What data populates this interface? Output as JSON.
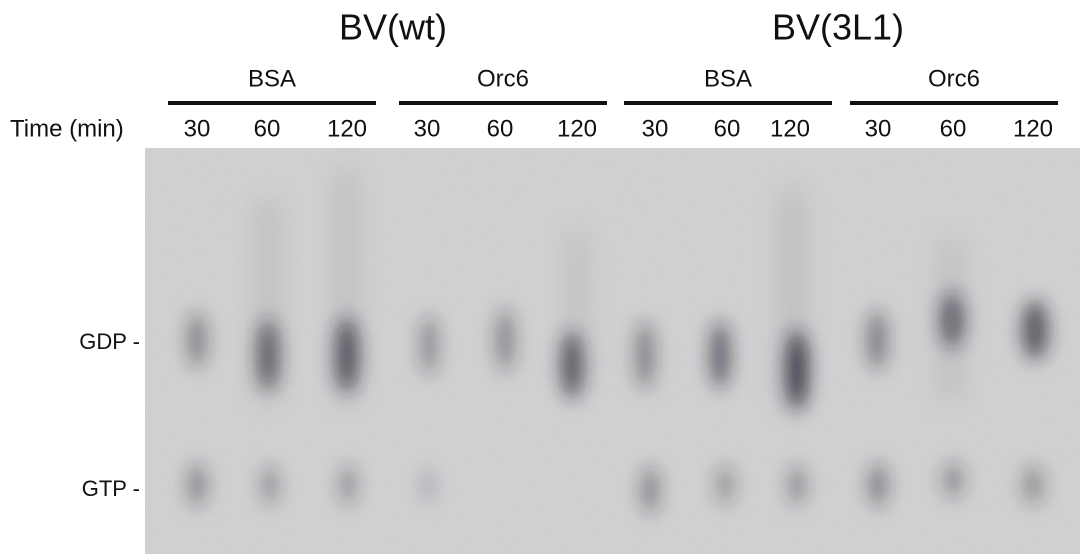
{
  "constructs": [
    "BV(wt)",
    "BV(3L1)"
  ],
  "groups": [
    "BSA",
    "Orc6",
    "BSA",
    "Orc6"
  ],
  "time_label": "Time (min)",
  "lanes": [
    30,
    60,
    120,
    30,
    60,
    120,
    30,
    60,
    120,
    30,
    60,
    120
  ],
  "bands": [
    "GDP -",
    "GTP -"
  ]
}
